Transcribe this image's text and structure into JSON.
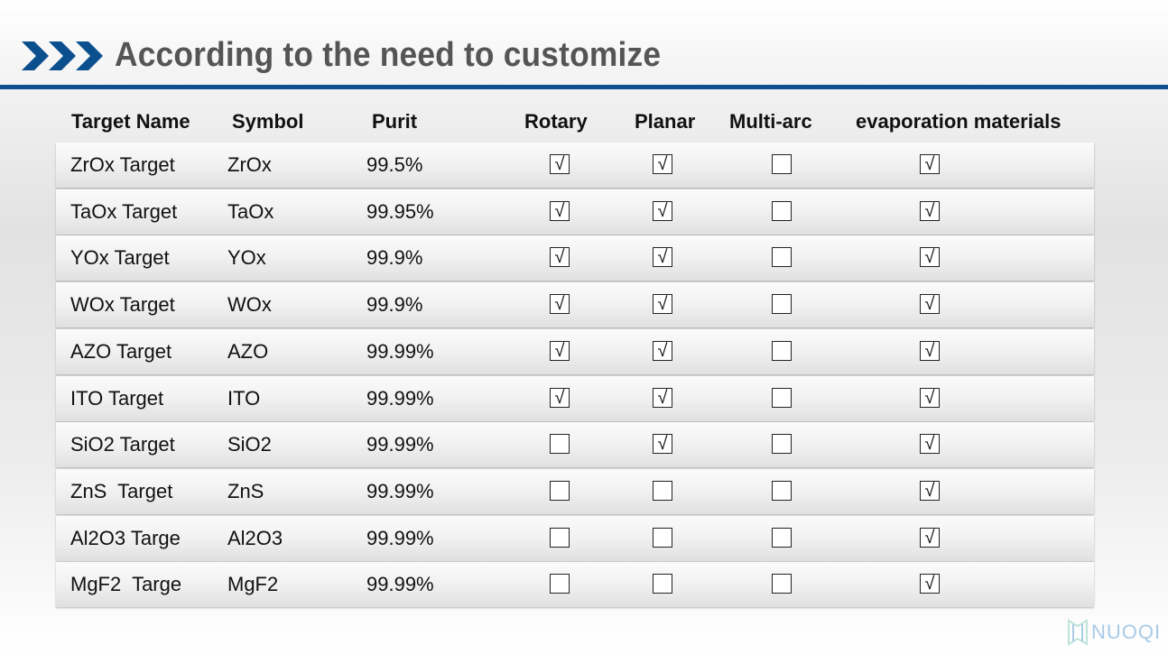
{
  "title": "According to the need to customize",
  "colors": {
    "accent": "#0c4f8f",
    "title": "#555555"
  },
  "columns": [
    "Target Name",
    "Symbol",
    "Purit",
    "Rotary",
    "Planar",
    "Multi-arc",
    "evaporation materials"
  ],
  "rows": [
    {
      "name": "ZrOx Target",
      "symbol": "ZrOx",
      "purity": "99.5%",
      "rotary": true,
      "planar": true,
      "multiarc": false,
      "evaporation": true
    },
    {
      "name": "TaOx Target",
      "symbol": "TaOx",
      "purity": "99.95%",
      "rotary": true,
      "planar": true,
      "multiarc": false,
      "evaporation": true
    },
    {
      "name": "YOx Target",
      "symbol": "YOx",
      "purity": "99.9%",
      "rotary": true,
      "planar": true,
      "multiarc": false,
      "evaporation": true
    },
    {
      "name": "WOx Target",
      "symbol": "WOx",
      "purity": "99.9%",
      "rotary": true,
      "planar": true,
      "multiarc": false,
      "evaporation": true
    },
    {
      "name": "AZO Target",
      "symbol": "AZO",
      "purity": "99.99%",
      "rotary": true,
      "planar": true,
      "multiarc": false,
      "evaporation": true
    },
    {
      "name": "ITO Target",
      "symbol": "ITO",
      "purity": "99.99%",
      "rotary": true,
      "planar": true,
      "multiarc": false,
      "evaporation": true
    },
    {
      "name": "SiO2 Target",
      "symbol": "SiO2",
      "purity": "99.99%",
      "rotary": false,
      "planar": true,
      "multiarc": false,
      "evaporation": true
    },
    {
      "name": "ZnS  Target",
      "symbol": "ZnS",
      "purity": "99.99%",
      "rotary": false,
      "planar": false,
      "multiarc": false,
      "evaporation": true
    },
    {
      "name": "Al2O3 Targe",
      "symbol": "Al2O3",
      "purity": "99.99%",
      "rotary": false,
      "planar": false,
      "multiarc": false,
      "evaporation": true
    },
    {
      "name": "MgF2  Targe",
      "symbol": "MgF2",
      "purity": "99.99%",
      "rotary": false,
      "planar": false,
      "multiarc": false,
      "evaporation": true
    }
  ],
  "logo": {
    "text": "NUOQI",
    "icon": "nuoqi-logo-icon"
  },
  "icons": {
    "title": "triple-chevron-icon",
    "checked": "checked-box-icon",
    "unchecked": "unchecked-box-icon"
  }
}
